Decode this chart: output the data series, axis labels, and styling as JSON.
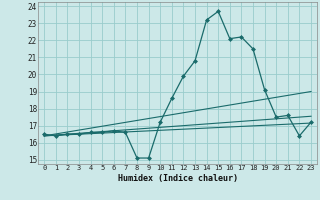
{
  "title": "",
  "xlabel": "Humidex (Indice chaleur)",
  "bg_color": "#cce8e8",
  "grid_color": "#99cccc",
  "line_color": "#1a6b6b",
  "xlim": [
    -0.5,
    23.5
  ],
  "ylim": [
    14.75,
    24.25
  ],
  "yticks": [
    15,
    16,
    17,
    18,
    19,
    20,
    21,
    22,
    23,
    24
  ],
  "xticks": [
    0,
    1,
    2,
    3,
    4,
    5,
    6,
    7,
    8,
    9,
    10,
    11,
    12,
    13,
    14,
    15,
    16,
    17,
    18,
    19,
    20,
    21,
    22,
    23
  ],
  "main_series": {
    "x": [
      0,
      1,
      2,
      3,
      4,
      5,
      6,
      7,
      8,
      9,
      10,
      11,
      12,
      13,
      14,
      15,
      16,
      17,
      18,
      19,
      20,
      21,
      22,
      23
    ],
    "y": [
      16.5,
      16.4,
      16.5,
      16.5,
      16.6,
      16.6,
      16.7,
      16.6,
      15.1,
      15.1,
      17.2,
      18.6,
      19.9,
      20.8,
      23.2,
      23.7,
      22.1,
      22.2,
      21.5,
      19.1,
      17.5,
      17.6,
      16.4,
      17.2
    ]
  },
  "trend_lines": [
    {
      "x": [
        0,
        23
      ],
      "y": [
        16.4,
        17.15
      ]
    },
    {
      "x": [
        0,
        23
      ],
      "y": [
        16.4,
        19.0
      ]
    },
    {
      "x": [
        0,
        23
      ],
      "y": [
        16.4,
        17.55
      ]
    }
  ]
}
